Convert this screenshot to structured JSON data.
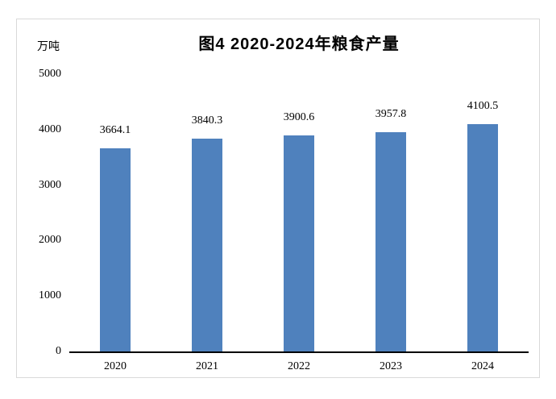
{
  "chart_data": {
    "type": "bar",
    "title": "图4 2020-2024年粮食产量",
    "unit_label": "万吨",
    "categories": [
      "2020",
      "2021",
      "2022",
      "2023",
      "2024"
    ],
    "values": [
      3664.1,
      3840.3,
      3900.6,
      3957.8,
      4100.5
    ],
    "value_labels": [
      "3664.1",
      "3840.3",
      "3900.6",
      "3957.8",
      "4100.5"
    ],
    "ylim": [
      0,
      5000
    ],
    "yticks": [
      0,
      1000,
      2000,
      3000,
      4000,
      5000
    ],
    "xlabel": "",
    "ylabel": "",
    "grid": false,
    "legend": "none",
    "bar_color": "#4f81bd",
    "axis_line_color": "#000000",
    "frame_border_color": "#d9d9d9",
    "text_color": "#000000"
  }
}
